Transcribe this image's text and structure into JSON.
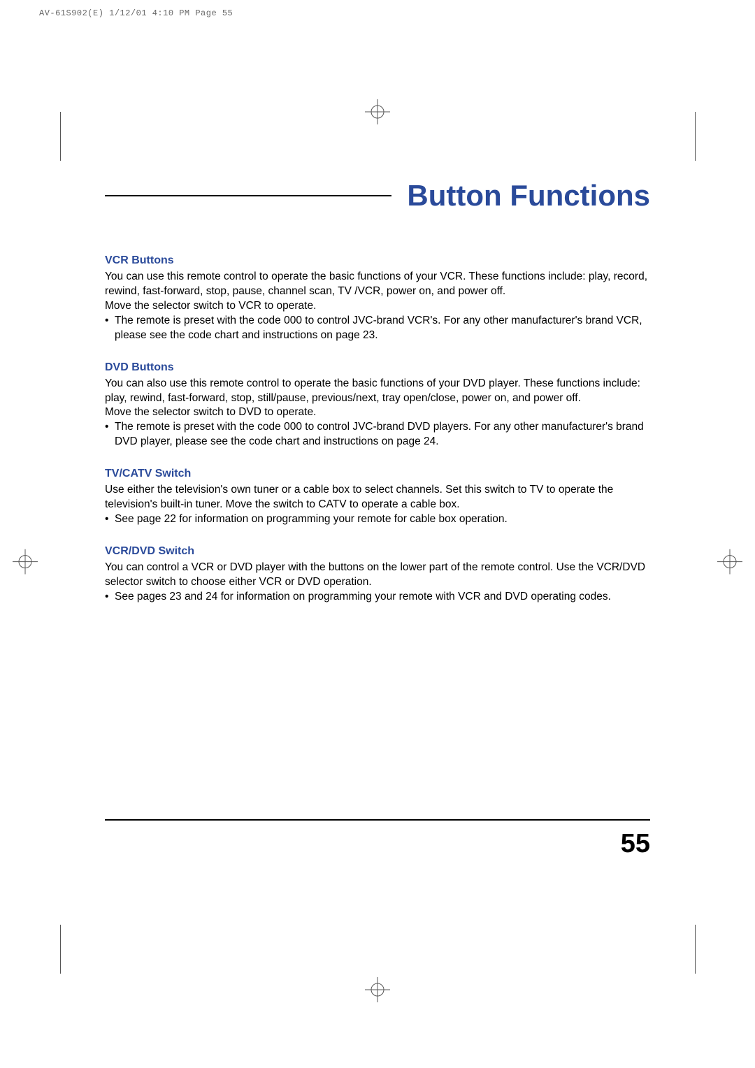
{
  "colors": {
    "heading_blue": "#2a4a9a",
    "body_black": "#000000",
    "header_gray": "#666666",
    "rule_black": "#000000",
    "background": "#ffffff",
    "mark_gray": "#555555"
  },
  "typography": {
    "title_fontsize_pt": 32,
    "section_head_fontsize_pt": 12,
    "body_fontsize_pt": 11.5,
    "page_num_fontsize_pt": 28,
    "header_fontsize_pt": 9,
    "title_weight": 700,
    "section_head_weight": 700
  },
  "header_info": "AV-61S902(E)  1/12/01  4:10 PM  Page 55",
  "page_title": "Button Functions",
  "page_number": "55",
  "sections": [
    {
      "heading": "VCR Buttons",
      "paras": [
        "You can use this remote control to operate the basic functions of your VCR. These functions include: play, record, rewind, fast-forward, stop, pause, channel scan, TV /VCR, power on, and power off.",
        "Move the selector switch to VCR to operate."
      ],
      "bullets": [
        "The remote is preset with the code 000 to control JVC-brand VCR's. For any other manufacturer's brand VCR, please see the code chart and instructions on page 23."
      ]
    },
    {
      "heading": "DVD Buttons",
      "paras": [
        "You can also use this remote control to operate the basic functions of your DVD player. These functions include: play, rewind, fast-forward, stop, still/pause, previous/next, tray open/close, power on, and power off.",
        "Move the selector switch to DVD to operate."
      ],
      "bullets": [
        "The remote is preset with the code 000 to control JVC-brand DVD players. For any other manufacturer's brand DVD player, please see the code chart and instructions on page 24."
      ]
    },
    {
      "heading": "TV/CATV Switch",
      "paras": [
        "Use either the television's own tuner or a cable box to select channels. Set this switch to TV to operate the television's built-in tuner. Move the switch to CATV to operate a cable box."
      ],
      "bullets": [
        "See page 22 for information on programming your remote for cable box operation."
      ]
    },
    {
      "heading": "VCR/DVD Switch",
      "paras": [
        "You can control a VCR or DVD player with the buttons on the lower part of the remote control. Use the VCR/DVD selector switch to choose either VCR or DVD operation."
      ],
      "bullets": [
        "See pages 23 and 24 for information on programming your remote with VCR and DVD operating codes."
      ]
    }
  ],
  "bullet_glyph": "•"
}
